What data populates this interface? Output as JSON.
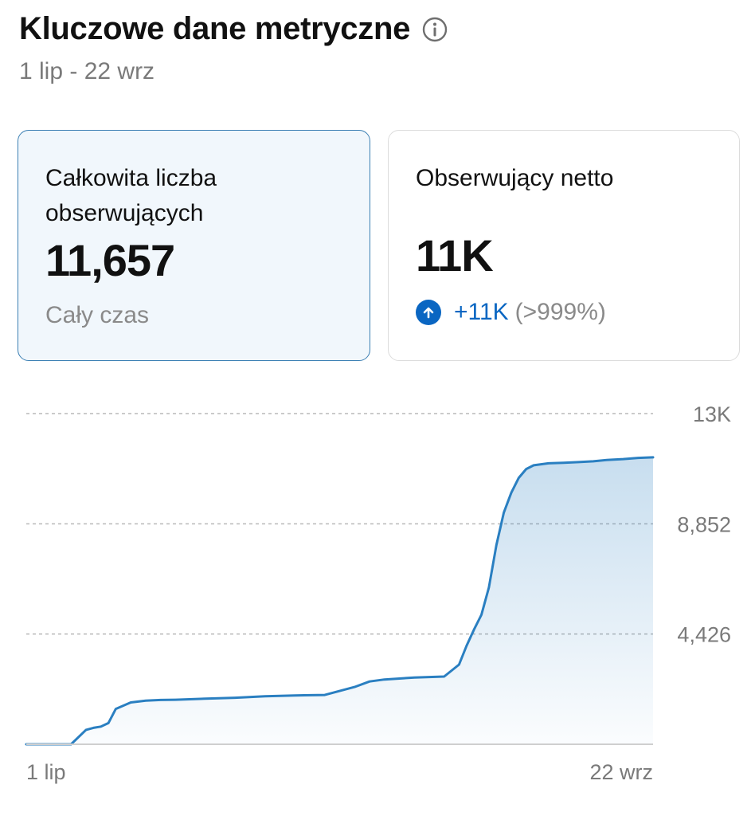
{
  "header": {
    "title": "Kluczowe dane metryczne",
    "info_icon": "info-icon",
    "date_range": "1 lip - 22 wrz"
  },
  "cards": {
    "total_followers": {
      "label": "Całkowita liczba obserwujących",
      "value": "11,657",
      "sub": "Cały czas"
    },
    "net_followers": {
      "label": "Obserwujący netto",
      "value": "11K",
      "change_icon": "arrow-up-icon",
      "change_value": "+11K",
      "change_pct": "(>999%)"
    }
  },
  "colors": {
    "accent": "#0a66c2",
    "line": "#2a7fc1",
    "selected_card_bg": "#f1f7fc",
    "selected_card_border": "#3b7fb3"
  },
  "chart_data": {
    "type": "area",
    "x_tick_labels": [
      "1 lip",
      "22 wrz"
    ],
    "y_tick_labels": [
      "4,426",
      "8,852",
      "13K"
    ],
    "ylim": [
      0,
      13278
    ],
    "grid": true,
    "x": [
      0,
      6,
      8,
      9,
      10,
      11,
      12,
      14,
      16,
      18,
      20,
      24,
      28,
      32,
      36,
      40,
      44,
      46,
      48,
      50,
      52,
      54,
      56,
      58,
      59,
      60,
      61,
      62,
      63,
      64,
      65,
      66,
      67,
      68,
      70,
      72,
      74,
      76,
      78,
      80,
      82,
      84
    ],
    "y": [
      0,
      0,
      580,
      660,
      710,
      850,
      1420,
      1680,
      1750,
      1780,
      1790,
      1830,
      1870,
      1930,
      1960,
      1980,
      2300,
      2520,
      2600,
      2640,
      2680,
      2700,
      2720,
      3200,
      3950,
      4600,
      5200,
      6300,
      8000,
      9300,
      10100,
      10700,
      11050,
      11200,
      11280,
      11300,
      11330,
      11360,
      11420,
      11450,
      11500,
      11520
    ]
  }
}
